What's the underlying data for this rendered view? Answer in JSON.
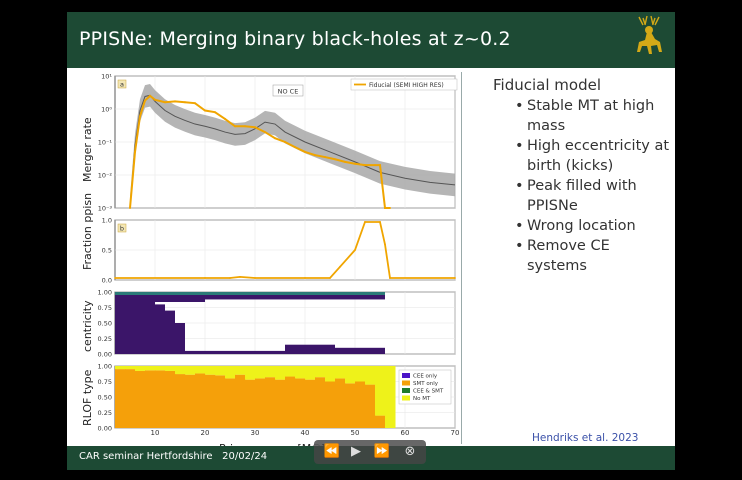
{
  "slide": {
    "title": "PPISNe: Merging binary black-holes at z~0.2",
    "footer": "CAR seminar Hertfordshire",
    "footer_date": "20/02/24",
    "credit": "Hendriks et al. 2023",
    "colors": {
      "bar": "#1d4a34",
      "accent": "#f0a500",
      "band": "#a8a8a8"
    }
  },
  "panels": {
    "a": {
      "tag": "a",
      "ylabel": "Merger rate",
      "annotation": "NO CE",
      "legend": "Fiducial (SEMI HIGH RES)",
      "yticks": [
        "10¹",
        "10⁰",
        "10⁻¹",
        "10⁻²",
        "10⁻³"
      ]
    },
    "b": {
      "tag": "b",
      "ylabel": "Fraction ppisn",
      "yticks": [
        "1.0",
        "0.5",
        "0.0"
      ]
    },
    "c": {
      "tag": "c",
      "ylabel": "centricity",
      "yticks": [
        "1.00",
        "0.75",
        "0.50",
        "0.25",
        "0.00"
      ]
    },
    "d": {
      "tag": "d",
      "ylabel": "RLOF type",
      "yticks": [
        "1.00",
        "0.75",
        "0.50",
        "0.25",
        "0.00"
      ],
      "legend": [
        "CEE only",
        "SMT only",
        "CEE & SMT",
        "No MT"
      ]
    }
  },
  "xaxis": {
    "label": "Primary mass [M☉]",
    "ticks": [
      "10",
      "20",
      "30",
      "40",
      "50",
      "60",
      "70"
    ]
  },
  "notes": {
    "heading": "Fiducial model",
    "bullets": [
      "Stable MT at high mass",
      "High eccentricity at birth (kicks)",
      "Peak filled with PPISNe",
      "Wrong location",
      "Remove CE systems"
    ]
  },
  "player": {
    "rewind": "⏪",
    "play": "▶",
    "forward": "⏩",
    "close": "⊗"
  },
  "chart_data": [
    {
      "type": "line",
      "panel": "a",
      "ylabel": "Merger rate",
      "yscale": "log",
      "ylim": [
        0.001,
        10
      ],
      "xlim": [
        2,
        70
      ],
      "series": [
        {
          "name": "Fiducial (SEMI HIGH RES)",
          "x": [
            5,
            6,
            7,
            8,
            9,
            10,
            12,
            14,
            16,
            18,
            20,
            22,
            24,
            26,
            28,
            30,
            32,
            34,
            36,
            38,
            40,
            42,
            44,
            46,
            48,
            50,
            52,
            54,
            55,
            56,
            57
          ],
          "values": [
            0.001,
            0.05,
            0.6,
            1.8,
            2.5,
            1.9,
            1.6,
            1.7,
            1.6,
            1.5,
            0.9,
            0.8,
            0.5,
            0.3,
            0.3,
            0.28,
            0.2,
            0.13,
            0.1,
            0.07,
            0.05,
            0.04,
            0.035,
            0.03,
            0.025,
            0.022,
            0.02,
            0.02,
            0.02,
            0.001,
            0.001
          ]
        },
        {
          "name": "",
          "x": [
            5,
            6,
            7,
            8,
            9,
            10,
            12,
            14,
            16,
            18,
            20,
            22,
            24,
            26,
            28,
            30,
            32,
            34,
            36,
            40,
            45,
            50,
            55,
            60,
            65,
            70
          ],
          "values": [
            0.001,
            0.08,
            0.9,
            2.4,
            2.6,
            1.7,
            0.9,
            0.6,
            0.45,
            0.35,
            0.3,
            0.25,
            0.2,
            0.17,
            0.18,
            0.25,
            0.4,
            0.35,
            0.2,
            0.1,
            0.05,
            0.025,
            0.012,
            0.008,
            0.006,
            0.005
          ]
        }
      ]
    },
    {
      "type": "line",
      "panel": "b",
      "ylabel": "Fraction ppisn",
      "ylim": [
        0,
        1
      ],
      "xlim": [
        2,
        70
      ],
      "series": [
        {
          "name": "",
          "x": [
            2,
            20,
            25,
            27,
            30,
            40,
            45,
            47,
            50,
            52,
            55,
            56,
            57,
            70
          ],
          "values": [
            0,
            0,
            0,
            0.02,
            0,
            0,
            0,
            0.2,
            0.5,
            1.0,
            1.0,
            0.6,
            0,
            0
          ]
        }
      ]
    },
    {
      "type": "bar",
      "panel": "c",
      "ylabel": "centricity",
      "ylim": [
        0,
        1
      ],
      "xlim": [
        2,
        70
      ],
      "categories": [
        "2-6",
        "6-10",
        "10-12",
        "12-14",
        "14-16",
        "16-20",
        "20-26",
        "26-30",
        "30-36",
        "36-46",
        "46-56"
      ],
      "series": [
        {
          "name": "",
          "values": [
            0.9,
            0.95,
            0.8,
            0.7,
            0.5,
            0.05,
            0.05,
            0.05,
            0.05,
            0.15,
            0.1
          ]
        }
      ]
    },
    {
      "type": "bar",
      "panel": "d",
      "ylabel": "RLOF type",
      "ylim": [
        0,
        1
      ],
      "xlim": [
        2,
        70
      ],
      "categories": [
        "2-4",
        "4-6",
        "6-8",
        "8-10",
        "10-12",
        "12-14",
        "14-16",
        "16-18",
        "18-20",
        "20-22",
        "22-24",
        "24-26",
        "26-28",
        "28-30",
        "30-32",
        "32-34",
        "34-36",
        "36-38",
        "38-40",
        "40-42",
        "42-44",
        "44-46",
        "46-48",
        "48-50",
        "50-52",
        "52-54",
        "54-56",
        "56-58"
      ],
      "series": [
        {
          "name": "SMT only",
          "values": [
            0.95,
            0.95,
            0.92,
            0.93,
            0.93,
            0.92,
            0.87,
            0.86,
            0.88,
            0.86,
            0.85,
            0.8,
            0.86,
            0.78,
            0.8,
            0.82,
            0.78,
            0.83,
            0.8,
            0.78,
            0.82,
            0.75,
            0.8,
            0.72,
            0.75,
            0.7,
            0.2,
            0.0
          ]
        },
        {
          "name": "No MT",
          "values": [
            0.05,
            0.05,
            0.08,
            0.07,
            0.07,
            0.08,
            0.13,
            0.14,
            0.12,
            0.14,
            0.15,
            0.2,
            0.14,
            0.22,
            0.2,
            0.18,
            0.22,
            0.17,
            0.2,
            0.22,
            0.18,
            0.25,
            0.2,
            0.28,
            0.25,
            0.3,
            0.8,
            1.0
          ]
        }
      ]
    }
  ]
}
